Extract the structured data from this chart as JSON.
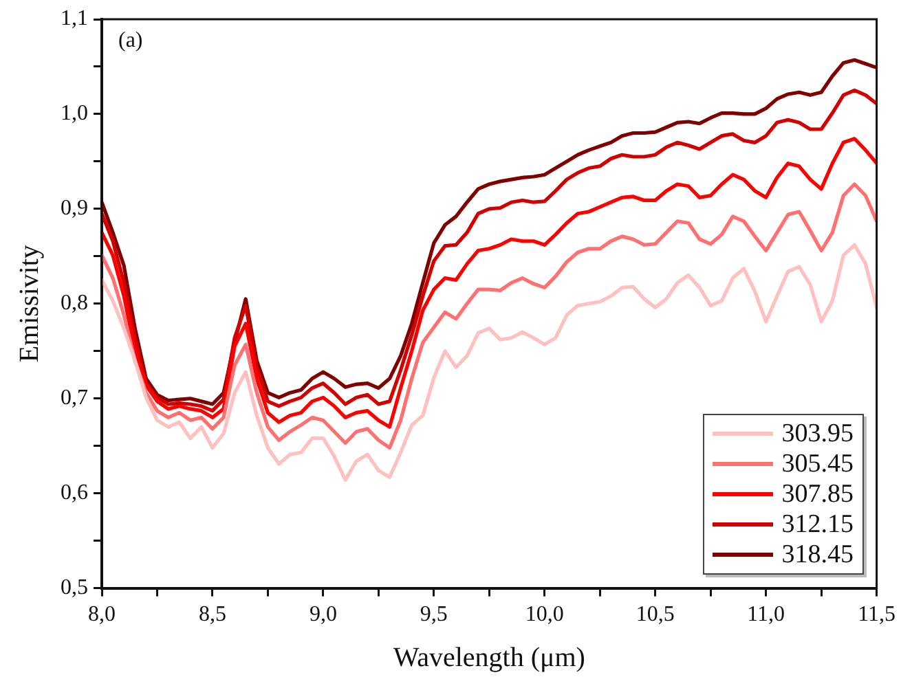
{
  "chart_data": {
    "type": "line",
    "xlabel": "Wavelength (μm)",
    "ylabel": "Emissivity",
    "annotations": [
      "(a)"
    ],
    "legend": "bottom right",
    "grid": false,
    "marker": "none",
    "line_style": "solid",
    "xlim": [
      8,
      11.5
    ],
    "ylim": [
      0.5,
      1.1
    ],
    "xticks": [
      {
        "value": 8,
        "label": "8,0"
      },
      {
        "value": 8.25,
        "label": null
      },
      {
        "value": 8.5,
        "label": "8,5"
      },
      {
        "value": 8.75,
        "label": null
      },
      {
        "value": 9,
        "label": "9,0"
      },
      {
        "value": 9.25,
        "label": null
      },
      {
        "value": 9.5,
        "label": "9,5"
      },
      {
        "value": 9.75,
        "label": null
      },
      {
        "value": 10,
        "label": "10,0"
      },
      {
        "value": 10.25,
        "label": null
      },
      {
        "value": 10.5,
        "label": "10,5"
      },
      {
        "value": 10.75,
        "label": null
      },
      {
        "value": 11,
        "label": "11,0"
      },
      {
        "value": 11.25,
        "label": null
      },
      {
        "value": 11.5,
        "label": "11,5"
      }
    ],
    "yticks": [
      {
        "value": 0.5,
        "label": "0,5"
      },
      {
        "value": 0.55,
        "label": null
      },
      {
        "value": 0.6,
        "label": "0,6"
      },
      {
        "value": 0.65,
        "label": null
      },
      {
        "value": 0.7,
        "label": "0,7"
      },
      {
        "value": 0.75,
        "label": null
      },
      {
        "value": 0.8,
        "label": "0,8"
      },
      {
        "value": 0.85,
        "label": null
      },
      {
        "value": 0.9,
        "label": "0,9"
      },
      {
        "value": 0.95,
        "label": null
      },
      {
        "value": 1.0,
        "label": "1,0"
      },
      {
        "value": 1.05,
        "label": null
      },
      {
        "value": 1.1,
        "label": "1,1"
      }
    ],
    "x": [
      8.0,
      8.05,
      8.1,
      8.15,
      8.2,
      8.25,
      8.3,
      8.35,
      8.4,
      8.45,
      8.5,
      8.55,
      8.6,
      8.65,
      8.7,
      8.75,
      8.8,
      8.85,
      8.9,
      8.95,
      9.0,
      9.05,
      9.1,
      9.15,
      9.2,
      9.25,
      9.3,
      9.35,
      9.4,
      9.45,
      9.5,
      9.55,
      9.6,
      9.65,
      9.7,
      9.75,
      9.8,
      9.85,
      9.9,
      9.95,
      10.0,
      10.05,
      10.1,
      10.15,
      10.2,
      10.25,
      10.3,
      10.35,
      10.4,
      10.45,
      10.5,
      10.55,
      10.6,
      10.65,
      10.7,
      10.75,
      10.8,
      10.85,
      10.9,
      10.95,
      11.0,
      11.05,
      11.1,
      11.15,
      11.2,
      11.25,
      11.3,
      11.35,
      11.4,
      11.45,
      11.5
    ],
    "series": [
      {
        "name": "303.95",
        "color": "#ffc0c0",
        "values": [
          0.825,
          0.803,
          0.774,
          0.74,
          0.701,
          0.677,
          0.67,
          0.675,
          0.658,
          0.67,
          0.648,
          0.663,
          0.706,
          0.728,
          0.682,
          0.648,
          0.631,
          0.641,
          0.643,
          0.658,
          0.658,
          0.639,
          0.614,
          0.634,
          0.641,
          0.624,
          0.617,
          0.643,
          0.672,
          0.682,
          0.722,
          0.75,
          0.733,
          0.745,
          0.769,
          0.774,
          0.762,
          0.764,
          0.77,
          0.764,
          0.757,
          0.764,
          0.788,
          0.798,
          0.8,
          0.802,
          0.808,
          0.817,
          0.818,
          0.805,
          0.796,
          0.805,
          0.822,
          0.83,
          0.817,
          0.798,
          0.803,
          0.827,
          0.837,
          0.813,
          0.781,
          0.808,
          0.834,
          0.839,
          0.82,
          0.781,
          0.803,
          0.851,
          0.862,
          0.842,
          0.796
        ]
      },
      {
        "name": "305.45",
        "color": "#ff7070",
        "values": [
          0.851,
          0.827,
          0.788,
          0.74,
          0.706,
          0.687,
          0.68,
          0.685,
          0.677,
          0.68,
          0.668,
          0.68,
          0.735,
          0.757,
          0.706,
          0.67,
          0.656,
          0.665,
          0.672,
          0.68,
          0.677,
          0.665,
          0.653,
          0.665,
          0.668,
          0.656,
          0.648,
          0.677,
          0.721,
          0.759,
          0.775,
          0.791,
          0.784,
          0.8,
          0.815,
          0.815,
          0.814,
          0.822,
          0.827,
          0.821,
          0.817,
          0.829,
          0.844,
          0.854,
          0.858,
          0.858,
          0.866,
          0.871,
          0.868,
          0.862,
          0.863,
          0.875,
          0.887,
          0.885,
          0.868,
          0.863,
          0.873,
          0.892,
          0.887,
          0.871,
          0.856,
          0.875,
          0.894,
          0.897,
          0.877,
          0.856,
          0.875,
          0.914,
          0.926,
          0.914,
          0.887
        ]
      },
      {
        "name": "307.85",
        "color": "#ff0000",
        "values": [
          0.875,
          0.851,
          0.808,
          0.75,
          0.714,
          0.697,
          0.689,
          0.692,
          0.689,
          0.687,
          0.68,
          0.689,
          0.755,
          0.779,
          0.721,
          0.685,
          0.675,
          0.682,
          0.685,
          0.697,
          0.701,
          0.692,
          0.68,
          0.685,
          0.687,
          0.677,
          0.67,
          0.711,
          0.75,
          0.793,
          0.815,
          0.827,
          0.825,
          0.842,
          0.856,
          0.858,
          0.862,
          0.868,
          0.866,
          0.866,
          0.862,
          0.873,
          0.885,
          0.895,
          0.897,
          0.902,
          0.907,
          0.912,
          0.913,
          0.909,
          0.909,
          0.919,
          0.926,
          0.924,
          0.912,
          0.914,
          0.926,
          0.936,
          0.931,
          0.919,
          0.912,
          0.933,
          0.948,
          0.945,
          0.931,
          0.921,
          0.948,
          0.97,
          0.974,
          0.962,
          0.948
        ]
      },
      {
        "name": "312.15",
        "color": "#d40000",
        "values": [
          0.895,
          0.866,
          0.822,
          0.764,
          0.716,
          0.701,
          0.694,
          0.695,
          0.694,
          0.692,
          0.687,
          0.699,
          0.764,
          0.798,
          0.733,
          0.697,
          0.692,
          0.697,
          0.701,
          0.711,
          0.716,
          0.706,
          0.694,
          0.701,
          0.704,
          0.694,
          0.697,
          0.73,
          0.767,
          0.808,
          0.845,
          0.861,
          0.862,
          0.875,
          0.895,
          0.9,
          0.901,
          0.907,
          0.909,
          0.907,
          0.908,
          0.919,
          0.931,
          0.938,
          0.943,
          0.945,
          0.953,
          0.957,
          0.955,
          0.955,
          0.957,
          0.965,
          0.97,
          0.967,
          0.963,
          0.97,
          0.977,
          0.979,
          0.972,
          0.97,
          0.977,
          0.991,
          0.994,
          0.991,
          0.984,
          0.984,
          1.001,
          1.02,
          1.025,
          1.02,
          1.011
        ]
      },
      {
        "name": "318.45",
        "color": "#800000",
        "values": [
          0.907,
          0.875,
          0.84,
          0.774,
          0.721,
          0.704,
          0.698,
          0.699,
          0.7,
          0.697,
          0.694,
          0.706,
          0.759,
          0.805,
          0.74,
          0.706,
          0.701,
          0.706,
          0.709,
          0.721,
          0.728,
          0.721,
          0.712,
          0.715,
          0.716,
          0.711,
          0.721,
          0.745,
          0.779,
          0.822,
          0.864,
          0.883,
          0.892,
          0.907,
          0.921,
          0.926,
          0.929,
          0.931,
          0.933,
          0.934,
          0.936,
          0.943,
          0.95,
          0.957,
          0.962,
          0.966,
          0.97,
          0.977,
          0.98,
          0.98,
          0.981,
          0.986,
          0.991,
          0.992,
          0.99,
          0.996,
          1.001,
          1.001,
          1.0,
          1.0,
          1.006,
          1.016,
          1.021,
          1.023,
          1.02,
          1.023,
          1.04,
          1.054,
          1.057,
          1.053,
          1.049
        ]
      }
    ]
  }
}
